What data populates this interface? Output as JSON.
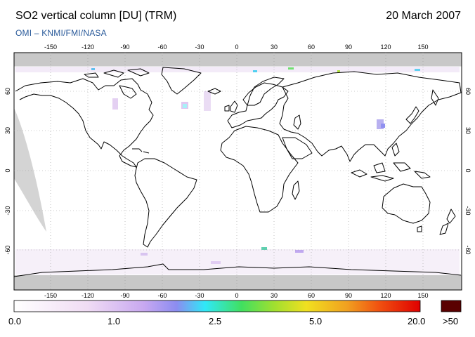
{
  "header": {
    "title": "SO2 vertical column [DU] (TRM)",
    "date": "20 March 2007",
    "credit": "OMI  –  KNMI/FMI/NASA"
  },
  "map": {
    "projection": "equirectangular",
    "lon_ticks": [
      "-150",
      "-120",
      "-90",
      "-60",
      "-30",
      "0",
      "30",
      "60",
      "90",
      "120",
      "150"
    ],
    "lat_ticks": [
      "60",
      "30",
      "0",
      "-30",
      "-60"
    ],
    "no_data_color": "#c8c8c8",
    "coastline_color": "#000000",
    "grid": "dotted"
  },
  "colorbar": {
    "labels": [
      "0.0",
      "1.0",
      "2.5",
      "5.0",
      "20.0",
      ">50"
    ],
    "colors": [
      "#ffffff",
      "#e8c8f0",
      "#a0a0f0",
      "#30e8f8",
      "#50e050",
      "#f0e020",
      "#f08020",
      "#e01010"
    ],
    "overflow_color": "#5a0000"
  }
}
